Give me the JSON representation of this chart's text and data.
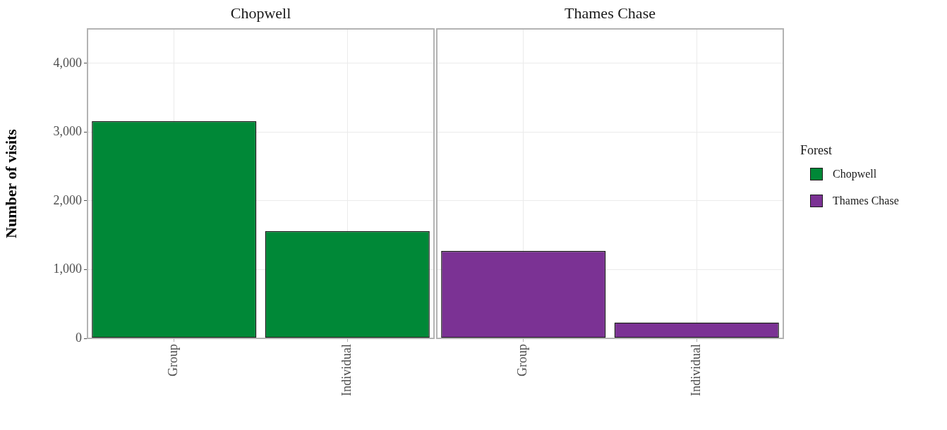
{
  "chart_data": [
    {
      "type": "bar",
      "title": "Chopwell",
      "ylabel": "Number of visits",
      "categories": [
        "Group",
        "Individual"
      ],
      "series": [
        {
          "name": "Chopwell",
          "color": "#008837",
          "values": [
            3160,
            1560
          ]
        }
      ],
      "ylim": [
        0,
        4500
      ],
      "yticks": [
        {
          "value": 0,
          "label": "0"
        },
        {
          "value": 1000,
          "label": "1,000"
        },
        {
          "value": 2000,
          "label": "2,000"
        },
        {
          "value": 3000,
          "label": "3,000"
        },
        {
          "value": 4000,
          "label": "4,000"
        }
      ],
      "grid": true,
      "legend": "right"
    },
    {
      "type": "bar",
      "title": "Thames Chase",
      "categories": [
        "Group",
        "Individual"
      ],
      "series": [
        {
          "name": "Thames Chase",
          "color": "#7b3294",
          "values": [
            1270,
            230
          ]
        }
      ],
      "ylim": [
        0,
        4500
      ],
      "yticks": [
        0,
        1000,
        2000,
        3000,
        4000
      ],
      "grid": true,
      "legend": "right",
      "legend_title": "Forest",
      "tick_labels": "x"
    }
  ]
}
